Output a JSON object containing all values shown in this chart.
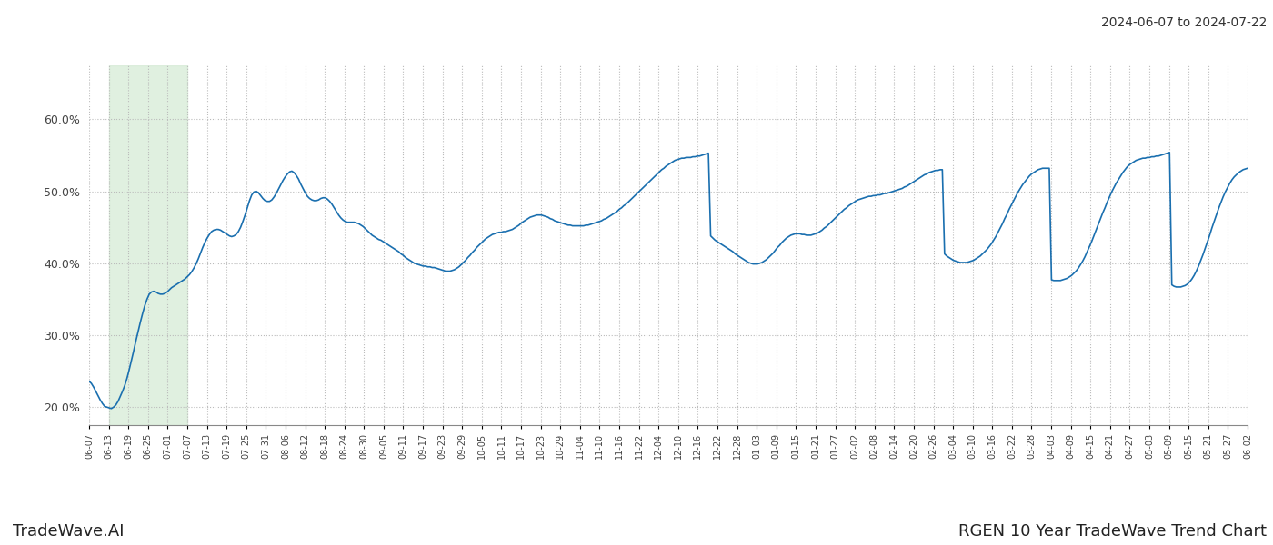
{
  "title_top_right": "2024-06-07 to 2024-07-22",
  "title_bottom_left": "TradeWave.AI",
  "title_bottom_right": "RGEN 10 Year TradeWave Trend Chart",
  "line_color": "#1a6faf",
  "line_width": 1.2,
  "highlight_color": "#d4ead4",
  "highlight_alpha": 0.7,
  "y_min": 0.175,
  "y_max": 0.675,
  "yticks": [
    0.2,
    0.3,
    0.4,
    0.5,
    0.6
  ],
  "ytick_labels": [
    "20.0%",
    "30.0%",
    "40.0%",
    "50.0%",
    "60.0%"
  ],
  "background_color": "#ffffff",
  "grid_color": "#bbbbbb",
  "x_labels": [
    "06-07",
    "06-13",
    "06-19",
    "06-25",
    "07-01",
    "07-07",
    "07-13",
    "07-19",
    "07-25",
    "07-31",
    "08-06",
    "08-12",
    "08-18",
    "08-24",
    "08-30",
    "09-05",
    "09-11",
    "09-17",
    "09-23",
    "09-29",
    "10-05",
    "10-11",
    "10-17",
    "10-23",
    "10-29",
    "11-04",
    "11-10",
    "11-16",
    "11-22",
    "12-04",
    "12-10",
    "12-16",
    "12-22",
    "12-28",
    "01-03",
    "01-09",
    "01-15",
    "01-21",
    "01-27",
    "02-02",
    "02-08",
    "02-14",
    "02-20",
    "02-26",
    "03-04",
    "03-10",
    "03-16",
    "03-22",
    "03-28",
    "04-03",
    "04-09",
    "04-15",
    "04-21",
    "04-27",
    "05-03",
    "05-09",
    "05-15",
    "05-21",
    "05-27",
    "06-02"
  ],
  "highlight_start_label": "06-13",
  "highlight_end_label": "07-07",
  "values": [
    0.236,
    0.233,
    0.228,
    0.222,
    0.216,
    0.21,
    0.205,
    0.201,
    0.2,
    0.199,
    0.198,
    0.2,
    0.203,
    0.208,
    0.215,
    0.222,
    0.23,
    0.24,
    0.252,
    0.265,
    0.278,
    0.292,
    0.305,
    0.318,
    0.33,
    0.341,
    0.35,
    0.357,
    0.36,
    0.361,
    0.36,
    0.358,
    0.357,
    0.357,
    0.358,
    0.36,
    0.363,
    0.366,
    0.368,
    0.37,
    0.372,
    0.374,
    0.376,
    0.378,
    0.381,
    0.384,
    0.388,
    0.393,
    0.399,
    0.406,
    0.414,
    0.422,
    0.429,
    0.435,
    0.44,
    0.444,
    0.446,
    0.447,
    0.447,
    0.446,
    0.444,
    0.442,
    0.44,
    0.438,
    0.437,
    0.438,
    0.44,
    0.444,
    0.45,
    0.458,
    0.467,
    0.477,
    0.487,
    0.495,
    0.499,
    0.5,
    0.498,
    0.494,
    0.49,
    0.487,
    0.486,
    0.486,
    0.488,
    0.492,
    0.497,
    0.503,
    0.509,
    0.515,
    0.52,
    0.524,
    0.527,
    0.528,
    0.526,
    0.522,
    0.517,
    0.51,
    0.504,
    0.498,
    0.493,
    0.49,
    0.488,
    0.487,
    0.487,
    0.488,
    0.49,
    0.491,
    0.491,
    0.489,
    0.486,
    0.482,
    0.477,
    0.472,
    0.467,
    0.463,
    0.46,
    0.458,
    0.457,
    0.457,
    0.457,
    0.457,
    0.456,
    0.455,
    0.453,
    0.451,
    0.448,
    0.445,
    0.442,
    0.439,
    0.437,
    0.435,
    0.433,
    0.432,
    0.43,
    0.428,
    0.426,
    0.424,
    0.422,
    0.42,
    0.418,
    0.416,
    0.413,
    0.411,
    0.408,
    0.406,
    0.404,
    0.402,
    0.4,
    0.399,
    0.398,
    0.397,
    0.396,
    0.396,
    0.395,
    0.395,
    0.394,
    0.394,
    0.393,
    0.392,
    0.391,
    0.39,
    0.389,
    0.389,
    0.389,
    0.39,
    0.391,
    0.393,
    0.395,
    0.398,
    0.401,
    0.404,
    0.408,
    0.411,
    0.415,
    0.418,
    0.422,
    0.425,
    0.428,
    0.431,
    0.434,
    0.436,
    0.438,
    0.44,
    0.441,
    0.442,
    0.443,
    0.443,
    0.444,
    0.444,
    0.445,
    0.446,
    0.447,
    0.449,
    0.451,
    0.453,
    0.456,
    0.458,
    0.46,
    0.462,
    0.464,
    0.465,
    0.466,
    0.467,
    0.467,
    0.467,
    0.466,
    0.465,
    0.464,
    0.462,
    0.461,
    0.459,
    0.458,
    0.457,
    0.456,
    0.455,
    0.454,
    0.453,
    0.453,
    0.452,
    0.452,
    0.452,
    0.452,
    0.452,
    0.452,
    0.453,
    0.453,
    0.454,
    0.455,
    0.456,
    0.457,
    0.458,
    0.459,
    0.461,
    0.462,
    0.464,
    0.466,
    0.468,
    0.47,
    0.472,
    0.475,
    0.477,
    0.48,
    0.482,
    0.485,
    0.488,
    0.491,
    0.494,
    0.497,
    0.5,
    0.503,
    0.506,
    0.509,
    0.512,
    0.515,
    0.518,
    0.521,
    0.524,
    0.527,
    0.53,
    0.532,
    0.535,
    0.537,
    0.539,
    0.541,
    0.543,
    0.544,
    0.545,
    0.546,
    0.546,
    0.547,
    0.547,
    0.547,
    0.548,
    0.548,
    0.549,
    0.549,
    0.55,
    0.551,
    0.552,
    0.553,
    0.438,
    0.435,
    0.432,
    0.43,
    0.428,
    0.426,
    0.424,
    0.422,
    0.42,
    0.418,
    0.416,
    0.413,
    0.411,
    0.409,
    0.407,
    0.405,
    0.403,
    0.401,
    0.4,
    0.399,
    0.399,
    0.399,
    0.4,
    0.401,
    0.403,
    0.405,
    0.408,
    0.411,
    0.414,
    0.418,
    0.422,
    0.425,
    0.429,
    0.432,
    0.435,
    0.437,
    0.439,
    0.44,
    0.441,
    0.441,
    0.441,
    0.44,
    0.44,
    0.439,
    0.439,
    0.439,
    0.44,
    0.441,
    0.442,
    0.444,
    0.446,
    0.449,
    0.451,
    0.454,
    0.457,
    0.46,
    0.463,
    0.466,
    0.469,
    0.472,
    0.475,
    0.477,
    0.48,
    0.482,
    0.484,
    0.486,
    0.488,
    0.489,
    0.49,
    0.491,
    0.492,
    0.493,
    0.493,
    0.494,
    0.494,
    0.495,
    0.495,
    0.496,
    0.497,
    0.497,
    0.498,
    0.499,
    0.5,
    0.501,
    0.502,
    0.503,
    0.504,
    0.506,
    0.507,
    0.509,
    0.511,
    0.513,
    0.515,
    0.517,
    0.519,
    0.521,
    0.523,
    0.524,
    0.526,
    0.527,
    0.528,
    0.529,
    0.529,
    0.53,
    0.53,
    0.413,
    0.41,
    0.408,
    0.406,
    0.404,
    0.403,
    0.402,
    0.401,
    0.401,
    0.401,
    0.401,
    0.402,
    0.403,
    0.404,
    0.406,
    0.408,
    0.41,
    0.413,
    0.416,
    0.419,
    0.423,
    0.427,
    0.432,
    0.437,
    0.443,
    0.449,
    0.455,
    0.462,
    0.468,
    0.475,
    0.481,
    0.487,
    0.493,
    0.499,
    0.504,
    0.509,
    0.513,
    0.517,
    0.521,
    0.524,
    0.526,
    0.528,
    0.53,
    0.531,
    0.532,
    0.532,
    0.532,
    0.532,
    0.377,
    0.376,
    0.376,
    0.376,
    0.376,
    0.377,
    0.378,
    0.379,
    0.381,
    0.383,
    0.386,
    0.389,
    0.393,
    0.398,
    0.403,
    0.409,
    0.416,
    0.423,
    0.43,
    0.438,
    0.446,
    0.454,
    0.462,
    0.47,
    0.477,
    0.485,
    0.492,
    0.499,
    0.505,
    0.511,
    0.516,
    0.521,
    0.526,
    0.53,
    0.534,
    0.537,
    0.539,
    0.541,
    0.543,
    0.544,
    0.545,
    0.546,
    0.546,
    0.547,
    0.547,
    0.548,
    0.548,
    0.549,
    0.549,
    0.55,
    0.551,
    0.552,
    0.553,
    0.554,
    0.37,
    0.368,
    0.367,
    0.367,
    0.367,
    0.368,
    0.369,
    0.371,
    0.374,
    0.378,
    0.383,
    0.389,
    0.396,
    0.404,
    0.412,
    0.421,
    0.43,
    0.439,
    0.449,
    0.458,
    0.467,
    0.476,
    0.484,
    0.492,
    0.499,
    0.505,
    0.511,
    0.516,
    0.52,
    0.523,
    0.526,
    0.528,
    0.53,
    0.531,
    0.532
  ]
}
